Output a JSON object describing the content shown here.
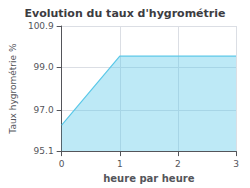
{
  "chart_data": {
    "type": "line",
    "area": true,
    "title": "Evolution du taux d'hygrométrie",
    "xlabel": "heure par heure",
    "ylabel": "Taux hygrométrie %",
    "x": [
      0,
      1,
      3
    ],
    "values": [
      96.3,
      99.5,
      99.5
    ],
    "color": "#5bc8e8",
    "xlim": [
      0,
      3
    ],
    "ylim": [
      95.1,
      100.9
    ],
    "xticks": [
      0,
      1,
      2,
      3
    ],
    "yticks": [
      95.1,
      {
        "value": 97.0,
        "label": "97.0"
      },
      {
        "value": 99.0,
        "label": "99.0"
      },
      100.9
    ],
    "grid": true
  }
}
